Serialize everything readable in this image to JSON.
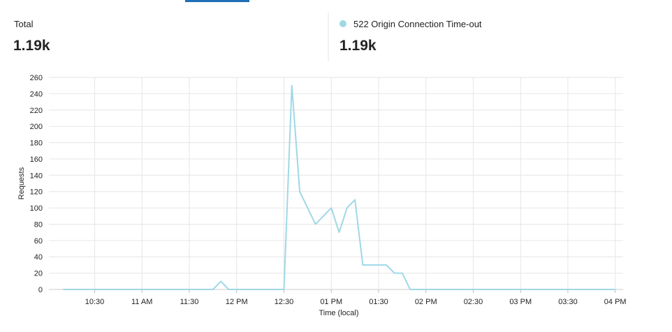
{
  "summary": {
    "total_label": "Total",
    "total_value": "1.19k",
    "series_value": "1.19k"
  },
  "chart_data": {
    "type": "line",
    "y_label": "Requests",
    "x_label": "Time (local)",
    "x": [
      610,
      615,
      620,
      625,
      630,
      635,
      640,
      645,
      650,
      655,
      660,
      665,
      670,
      675,
      680,
      685,
      690,
      695,
      700,
      705,
      710,
      715,
      720,
      725,
      730,
      735,
      740,
      745,
      750,
      755,
      760,
      765,
      770,
      775,
      780,
      785,
      790,
      795,
      800,
      805,
      810,
      815,
      820,
      825,
      830,
      835,
      840,
      845,
      850,
      855,
      860,
      865,
      870,
      875,
      880,
      885,
      890,
      895,
      900,
      905,
      910,
      915,
      920,
      925,
      930,
      935,
      940,
      945,
      950,
      955,
      960
    ],
    "series": [
      {
        "name": "522 Origin Connection Time-out",
        "color": "#9fd8e6",
        "values": [
          0,
          0,
          0,
          0,
          0,
          0,
          0,
          0,
          0,
          0,
          0,
          0,
          0,
          0,
          0,
          0,
          0,
          0,
          0,
          0,
          10,
          0,
          0,
          0,
          0,
          0,
          0,
          0,
          0,
          250,
          120,
          100,
          80,
          90,
          100,
          70,
          100,
          110,
          30,
          30,
          30,
          30,
          20,
          20,
          0,
          0,
          0,
          0,
          0,
          0,
          0,
          0,
          0,
          0,
          0,
          0,
          0,
          0,
          0,
          0,
          0,
          0,
          0,
          0,
          0,
          0,
          0,
          0,
          0,
          0,
          0
        ]
      }
    ],
    "xlim": [
      601,
      965
    ],
    "ylim": [
      0,
      260
    ],
    "xticks": [
      {
        "value": 630,
        "label": "10:30"
      },
      {
        "value": 660,
        "label": "11 AM"
      },
      {
        "value": 690,
        "label": "11:30"
      },
      {
        "value": 720,
        "label": "12 PM"
      },
      {
        "value": 750,
        "label": "12:30"
      },
      {
        "value": 780,
        "label": "01 PM"
      },
      {
        "value": 810,
        "label": "01:30"
      },
      {
        "value": 840,
        "label": "02 PM"
      },
      {
        "value": 870,
        "label": "02:30"
      },
      {
        "value": 900,
        "label": "03 PM"
      },
      {
        "value": 930,
        "label": "03:30"
      },
      {
        "value": 960,
        "label": "04 PM"
      }
    ],
    "yticks": [
      0,
      20,
      40,
      60,
      80,
      100,
      120,
      140,
      160,
      180,
      200,
      220,
      240,
      260
    ],
    "grid": true
  }
}
